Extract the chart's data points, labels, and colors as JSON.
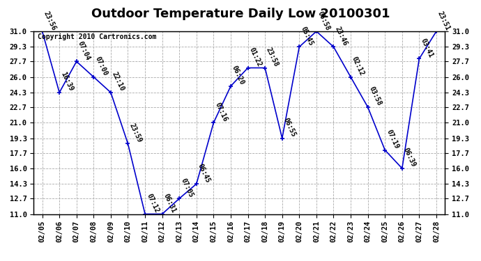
{
  "title": "Outdoor Temperature Daily Low 20100301",
  "copyright": "Copyright 2010 Cartronics.com",
  "dates": [
    "02/05",
    "02/06",
    "02/07",
    "02/08",
    "02/09",
    "02/10",
    "02/11",
    "02/12",
    "02/13",
    "02/14",
    "02/15",
    "02/16",
    "02/17",
    "02/18",
    "02/19",
    "02/20",
    "02/21",
    "02/22",
    "02/23",
    "02/24",
    "02/25",
    "02/26",
    "02/27",
    "02/28"
  ],
  "values": [
    31.0,
    24.3,
    27.7,
    26.0,
    24.3,
    18.7,
    11.0,
    11.0,
    12.7,
    14.3,
    21.0,
    25.0,
    27.0,
    27.0,
    19.3,
    29.3,
    31.0,
    29.3,
    26.0,
    22.7,
    18.0,
    16.0,
    28.0,
    31.0
  ],
  "labels": [
    "23:56",
    "16:39",
    "07:04",
    "07:00",
    "22:10",
    "23:59",
    "07:12",
    "06:31",
    "07:05",
    "06:45",
    "07:16",
    "06:20",
    "01:22",
    "23:58",
    "06:55",
    "05:45",
    "06:58",
    "23:46",
    "02:12",
    "03:58",
    "07:19",
    "06:39",
    "03:41",
    "23:51"
  ],
  "line_color": "#0000cc",
  "marker_color": "#0000cc",
  "bg_color": "#ffffff",
  "grid_color": "#aaaaaa",
  "ylim": [
    11.0,
    31.0
  ],
  "yticks": [
    11.0,
    12.7,
    14.3,
    16.0,
    17.7,
    19.3,
    21.0,
    22.7,
    24.3,
    26.0,
    27.7,
    29.3,
    31.0
  ],
  "title_fontsize": 13,
  "label_fontsize": 7,
  "tick_fontsize": 7.5,
  "copyright_fontsize": 7
}
